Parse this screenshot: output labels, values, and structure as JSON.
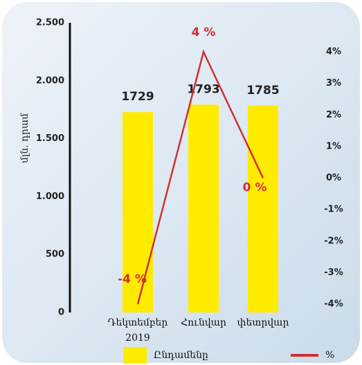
{
  "chart_data": {
    "type": "bar-line",
    "categories": [
      "Դեկտեմբեր 2019",
      "Հունվար",
      "փետրվար"
    ],
    "y_label": "մլն. դրամ",
    "ylim": [
      0,
      2500
    ],
    "yticks": [
      {
        "value": 0,
        "label": "0"
      },
      {
        "value": 500,
        "label": "500"
      },
      {
        "value": 1000,
        "label": "1.000"
      },
      {
        "value": 1500,
        "label": "1.500"
      },
      {
        "value": 2000,
        "label": "2.000"
      },
      {
        "value": 2500,
        "label": "2.500"
      }
    ],
    "y2lim": [
      -4,
      4
    ],
    "y2ticks": [
      {
        "value": -4,
        "label": "-4%"
      },
      {
        "value": -3,
        "label": "-3%"
      },
      {
        "value": -2,
        "label": "-2%"
      },
      {
        "value": -1,
        "label": "-1%"
      },
      {
        "value": 0,
        "label": "0%"
      },
      {
        "value": 1,
        "label": "1%"
      },
      {
        "value": 2,
        "label": "2%"
      },
      {
        "value": 3,
        "label": "3%"
      },
      {
        "value": 4,
        "label": "4%"
      }
    ],
    "series": [
      {
        "name": "Ընդամենը",
        "type": "bar",
        "color": "#ffeb00",
        "values": [
          1729,
          1793,
          1785
        ]
      },
      {
        "name": "%",
        "type": "line",
        "axis": "y2",
        "color": "#d32f2f",
        "values": [
          -4,
          4,
          0
        ],
        "value_labels": [
          "-4 %",
          "4 %",
          "0 %"
        ]
      }
    ]
  }
}
